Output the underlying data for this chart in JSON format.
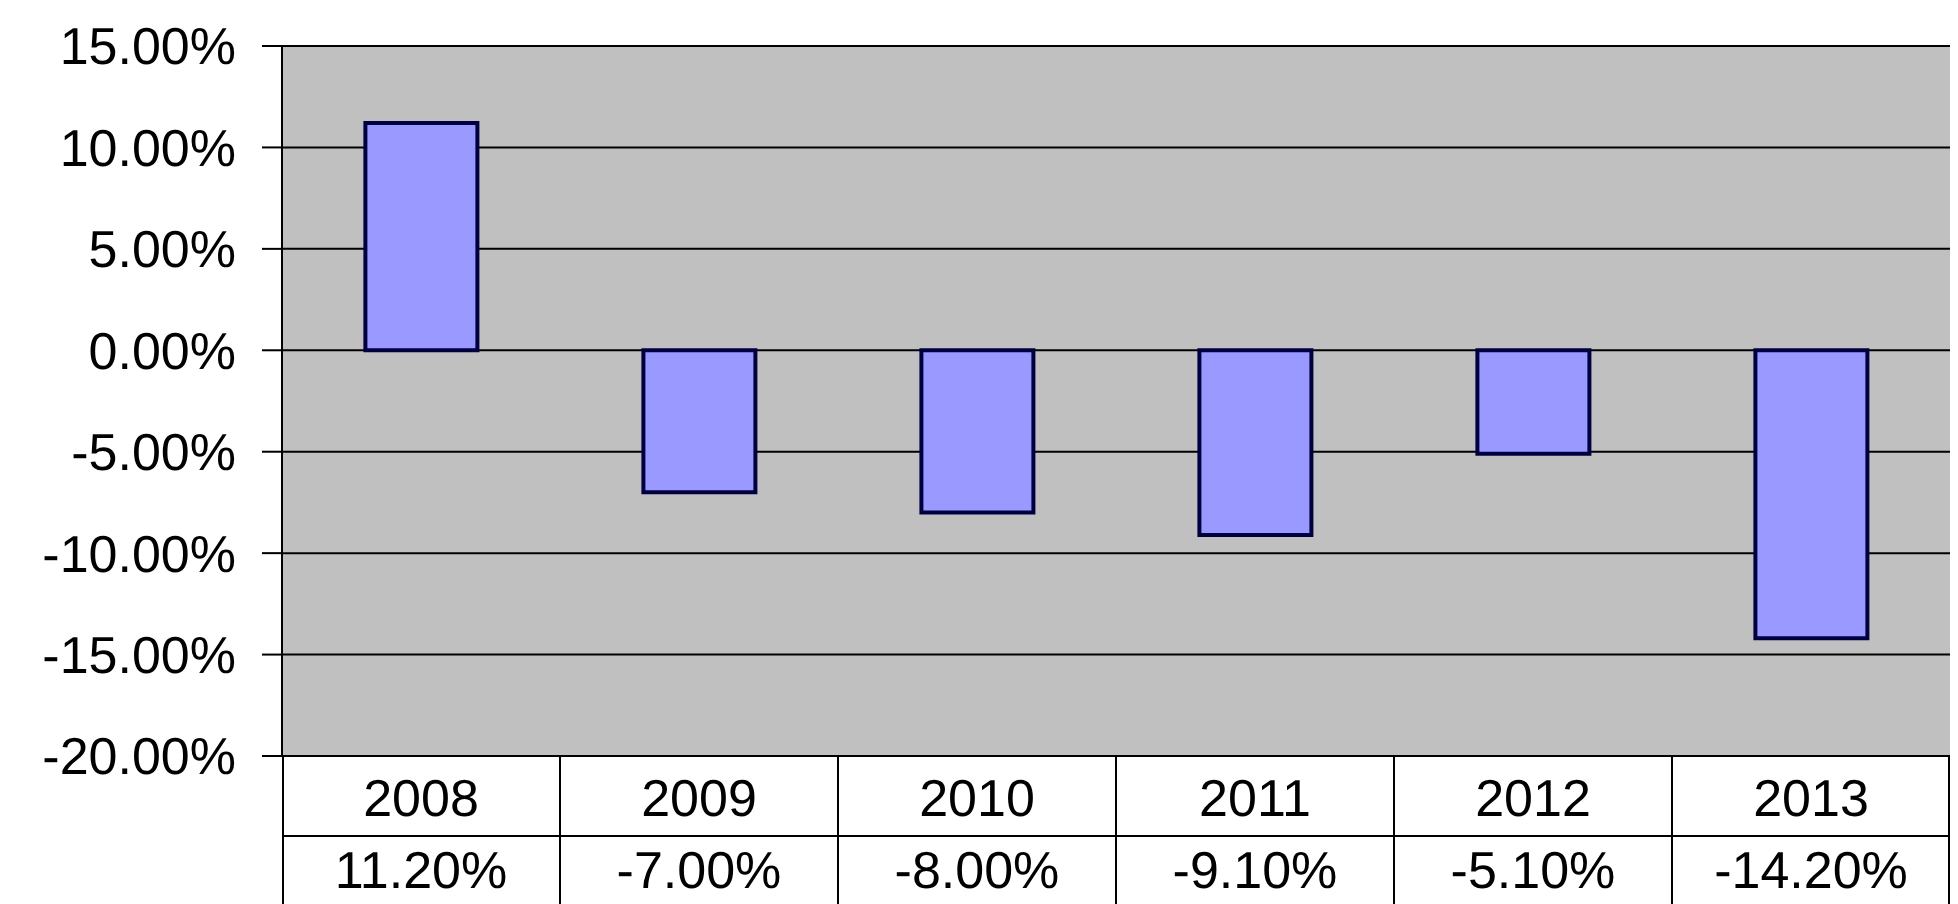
{
  "chart_data": {
    "type": "bar",
    "categories": [
      "2008",
      "2009",
      "2010",
      "2011",
      "2012",
      "2013"
    ],
    "values": [
      11.2,
      -7,
      -8,
      -9.1,
      -5.1,
      -14.2
    ],
    "color": "#9999ff",
    "value_labels": [
      "11.20%",
      "-7.00%",
      "-8.00%",
      "-9.10%",
      "-5.10%",
      "-14.20%"
    ],
    "ylim": [
      -20,
      15
    ],
    "yticks": [
      {
        "value": -20,
        "label": "-20.00%"
      },
      {
        "value": -15,
        "label": "-15.00%"
      },
      {
        "value": -10,
        "label": "-10.00%"
      },
      {
        "value": -5,
        "label": "-5.00%"
      },
      {
        "value": 0,
        "label": "0.00%"
      },
      {
        "value": 5,
        "label": "5.00%"
      },
      {
        "value": 10,
        "label": "10.00%"
      },
      {
        "value": 15,
        "label": "15.00%"
      }
    ],
    "grid": "y"
  }
}
